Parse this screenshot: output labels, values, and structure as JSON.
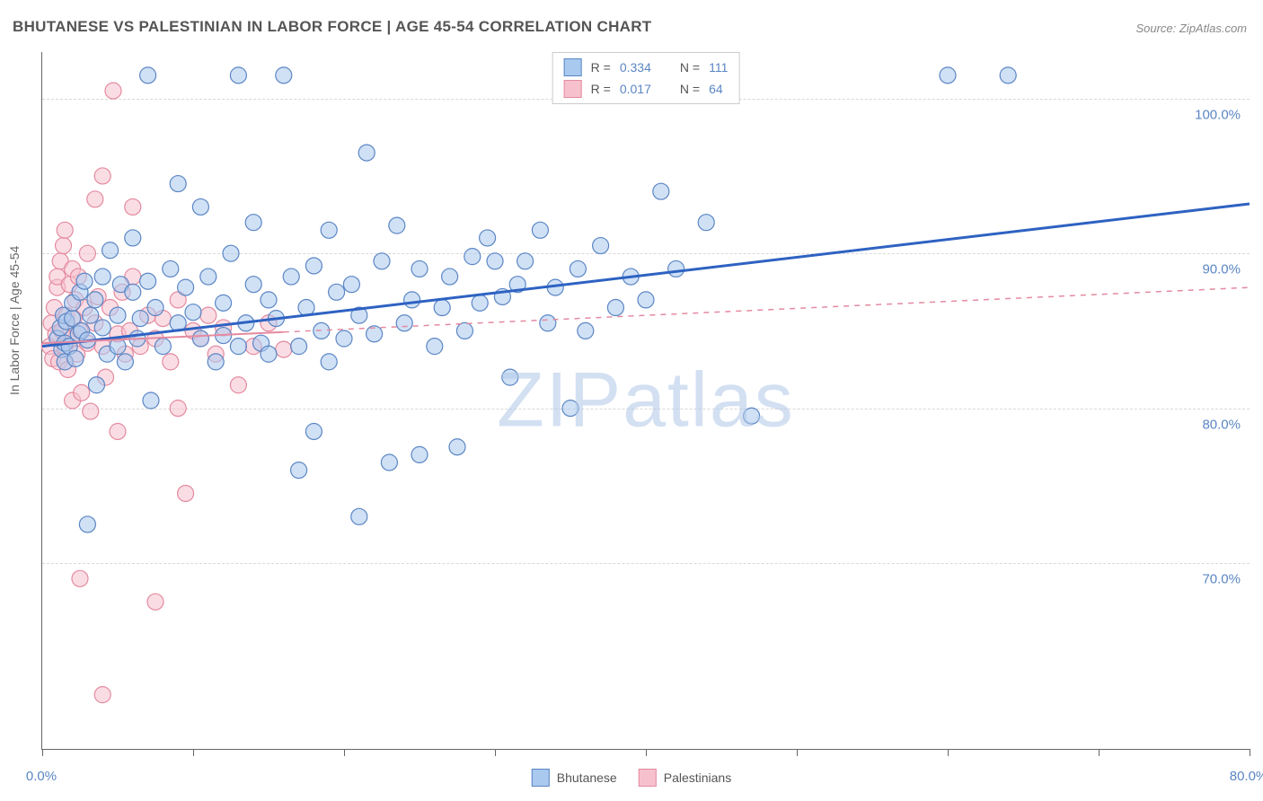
{
  "title": "BHUTANESE VS PALESTINIAN IN LABOR FORCE | AGE 45-54 CORRELATION CHART",
  "source": "Source: ZipAtlas.com",
  "ylabel": "In Labor Force | Age 45-54",
  "watermark_bold": "ZIP",
  "watermark_thin": "atlas",
  "chart": {
    "type": "scatter",
    "background_color": "#ffffff",
    "grid_color": "#d8d8d8",
    "axis_color": "#666666",
    "xlim": [
      0,
      80
    ],
    "ylim": [
      58,
      103
    ],
    "xticks": [
      0,
      10,
      20,
      30,
      40,
      50,
      60,
      70,
      80
    ],
    "xtick_labels": {
      "0": "0.0%",
      "80": "80.0%"
    },
    "yticks": [
      70,
      80,
      90,
      100
    ],
    "ytick_labels": {
      "70": "70.0%",
      "80": "80.0%",
      "90": "90.0%",
      "100": "100.0%"
    },
    "marker_radius": 9,
    "marker_opacity": 0.55,
    "series": [
      {
        "name": "Bhutanese",
        "color_fill": "#a9c9ef",
        "color_stroke": "#5b86c4",
        "trend": {
          "x1": 0,
          "y1": 84.0,
          "x2": 80,
          "y2": 93.2,
          "color": "#2e62c2",
          "width": 3,
          "dash_from_x": null
        },
        "stats": {
          "R_label": "R =",
          "R": "0.334",
          "N_label": "N =",
          "N": "111"
        },
        "points": [
          [
            1,
            84.5
          ],
          [
            1.2,
            85.2
          ],
          [
            1.3,
            83.8
          ],
          [
            1.4,
            86.0
          ],
          [
            1.5,
            84.2
          ],
          [
            1.5,
            83.0
          ],
          [
            1.6,
            85.6
          ],
          [
            1.8,
            84.0
          ],
          [
            2,
            85.8
          ],
          [
            2,
            86.8
          ],
          [
            2.2,
            83.2
          ],
          [
            2.4,
            84.8
          ],
          [
            2.5,
            87.5
          ],
          [
            2.6,
            85.0
          ],
          [
            2.8,
            88.2
          ],
          [
            3,
            84.4
          ],
          [
            3,
            72.5
          ],
          [
            3.2,
            86.0
          ],
          [
            3.5,
            87.0
          ],
          [
            3.6,
            81.5
          ],
          [
            4,
            88.5
          ],
          [
            4,
            85.2
          ],
          [
            4.3,
            83.5
          ],
          [
            4.5,
            90.2
          ],
          [
            5,
            86.0
          ],
          [
            5,
            84.0
          ],
          [
            5.2,
            88.0
          ],
          [
            5.5,
            83.0
          ],
          [
            6,
            87.5
          ],
          [
            6,
            91.0
          ],
          [
            6.3,
            84.5
          ],
          [
            6.5,
            85.8
          ],
          [
            7,
            101.5
          ],
          [
            7,
            88.2
          ],
          [
            7.2,
            80.5
          ],
          [
            7.5,
            86.5
          ],
          [
            8,
            84.0
          ],
          [
            8.5,
            89.0
          ],
          [
            9,
            85.5
          ],
          [
            9,
            94.5
          ],
          [
            9.5,
            87.8
          ],
          [
            10,
            86.2
          ],
          [
            10.5,
            93.0
          ],
          [
            10.5,
            84.5
          ],
          [
            11,
            88.5
          ],
          [
            11.5,
            83.0
          ],
          [
            12,
            84.7
          ],
          [
            12,
            86.8
          ],
          [
            12.5,
            90.0
          ],
          [
            13,
            84.0
          ],
          [
            13,
            101.5
          ],
          [
            13.5,
            85.5
          ],
          [
            14,
            88.0
          ],
          [
            14,
            92.0
          ],
          [
            14.5,
            84.2
          ],
          [
            15,
            87.0
          ],
          [
            15,
            83.5
          ],
          [
            15.5,
            85.8
          ],
          [
            16,
            101.5
          ],
          [
            16.5,
            88.5
          ],
          [
            17,
            76.0
          ],
          [
            17,
            84.0
          ],
          [
            17.5,
            86.5
          ],
          [
            18,
            78.5
          ],
          [
            18,
            89.2
          ],
          [
            18.5,
            85.0
          ],
          [
            19,
            83.0
          ],
          [
            19,
            91.5
          ],
          [
            19.5,
            87.5
          ],
          [
            20,
            84.5
          ],
          [
            20.5,
            88.0
          ],
          [
            21,
            73.0
          ],
          [
            21,
            86.0
          ],
          [
            21.5,
            96.5
          ],
          [
            22,
            84.8
          ],
          [
            22.5,
            89.5
          ],
          [
            23,
            76.5
          ],
          [
            23.5,
            91.8
          ],
          [
            24,
            85.5
          ],
          [
            24.5,
            87.0
          ],
          [
            25,
            77.0
          ],
          [
            25,
            89.0
          ],
          [
            26,
            84.0
          ],
          [
            26.5,
            86.5
          ],
          [
            27,
            88.5
          ],
          [
            27.5,
            77.5
          ],
          [
            28,
            85.0
          ],
          [
            28.5,
            89.8
          ],
          [
            29,
            86.8
          ],
          [
            29.5,
            91.0
          ],
          [
            30,
            89.5
          ],
          [
            30.5,
            87.2
          ],
          [
            31,
            82.0
          ],
          [
            31.5,
            88.0
          ],
          [
            32,
            89.5
          ],
          [
            33,
            91.5
          ],
          [
            33.5,
            85.5
          ],
          [
            34,
            87.8
          ],
          [
            35,
            80.0
          ],
          [
            35.5,
            89.0
          ],
          [
            36,
            85.0
          ],
          [
            37,
            90.5
          ],
          [
            38,
            86.5
          ],
          [
            39,
            88.5
          ],
          [
            40,
            87.0
          ],
          [
            41,
            94.0
          ],
          [
            42,
            89.0
          ],
          [
            44,
            92.0
          ],
          [
            47,
            79.5
          ],
          [
            60,
            101.5
          ],
          [
            64,
            101.5
          ]
        ]
      },
      {
        "name": "Palestinians",
        "color_fill": "#f6c1cd",
        "color_stroke": "#e48aa0",
        "trend": {
          "x1": 0,
          "y1": 84.2,
          "x2": 80,
          "y2": 87.8,
          "color": "#e48aa0",
          "width": 2,
          "dash_from_x": 16
        },
        "stats": {
          "R_label": "R =",
          "R": "0.017",
          "N_label": "N =",
          "N": "64"
        },
        "points": [
          [
            0.5,
            84.0
          ],
          [
            0.6,
            85.5
          ],
          [
            0.7,
            83.2
          ],
          [
            0.8,
            86.5
          ],
          [
            0.9,
            84.8
          ],
          [
            1,
            87.8
          ],
          [
            1,
            88.5
          ],
          [
            1.1,
            83.0
          ],
          [
            1.2,
            89.5
          ],
          [
            1.3,
            85.0
          ],
          [
            1.4,
            90.5
          ],
          [
            1.5,
            84.0
          ],
          [
            1.5,
            91.5
          ],
          [
            1.6,
            86.0
          ],
          [
            1.7,
            82.5
          ],
          [
            1.8,
            88.0
          ],
          [
            1.9,
            84.5
          ],
          [
            2,
            89.0
          ],
          [
            2,
            80.5
          ],
          [
            2.1,
            85.8
          ],
          [
            2.2,
            87.0
          ],
          [
            2.3,
            83.5
          ],
          [
            2.4,
            88.5
          ],
          [
            2.5,
            85.0
          ],
          [
            2.6,
            81.0
          ],
          [
            2.8,
            86.5
          ],
          [
            3,
            84.2
          ],
          [
            3,
            90.0
          ],
          [
            3.2,
            79.8
          ],
          [
            3.5,
            85.5
          ],
          [
            3.5,
            93.5
          ],
          [
            3.7,
            87.2
          ],
          [
            4,
            84.0
          ],
          [
            4,
            95.0
          ],
          [
            4.2,
            82.0
          ],
          [
            4.5,
            86.5
          ],
          [
            4.7,
            100.5
          ],
          [
            5,
            84.8
          ],
          [
            5,
            78.5
          ],
          [
            5.3,
            87.5
          ],
          [
            5.5,
            83.5
          ],
          [
            5.8,
            85.0
          ],
          [
            6,
            88.5
          ],
          [
            6,
            93.0
          ],
          [
            6.5,
            84.0
          ],
          [
            7,
            86.0
          ],
          [
            7.5,
            84.5
          ],
          [
            7.5,
            67.5
          ],
          [
            8,
            85.8
          ],
          [
            8.5,
            83.0
          ],
          [
            9,
            87.0
          ],
          [
            9,
            80.0
          ],
          [
            9.5,
            74.5
          ],
          [
            10,
            85.0
          ],
          [
            10.5,
            84.5
          ],
          [
            11,
            86.0
          ],
          [
            11.5,
            83.5
          ],
          [
            12,
            85.2
          ],
          [
            13,
            81.5
          ],
          [
            14,
            84.0
          ],
          [
            15,
            85.5
          ],
          [
            16,
            83.8
          ],
          [
            4,
            61.5
          ],
          [
            2.5,
            69.0
          ]
        ]
      }
    ],
    "legend_bottom": [
      {
        "label": "Bhutanese",
        "fill": "#a9c9ef",
        "stroke": "#5b86c4"
      },
      {
        "label": "Palestinians",
        "fill": "#f6c1cd",
        "stroke": "#e48aa0"
      }
    ]
  }
}
